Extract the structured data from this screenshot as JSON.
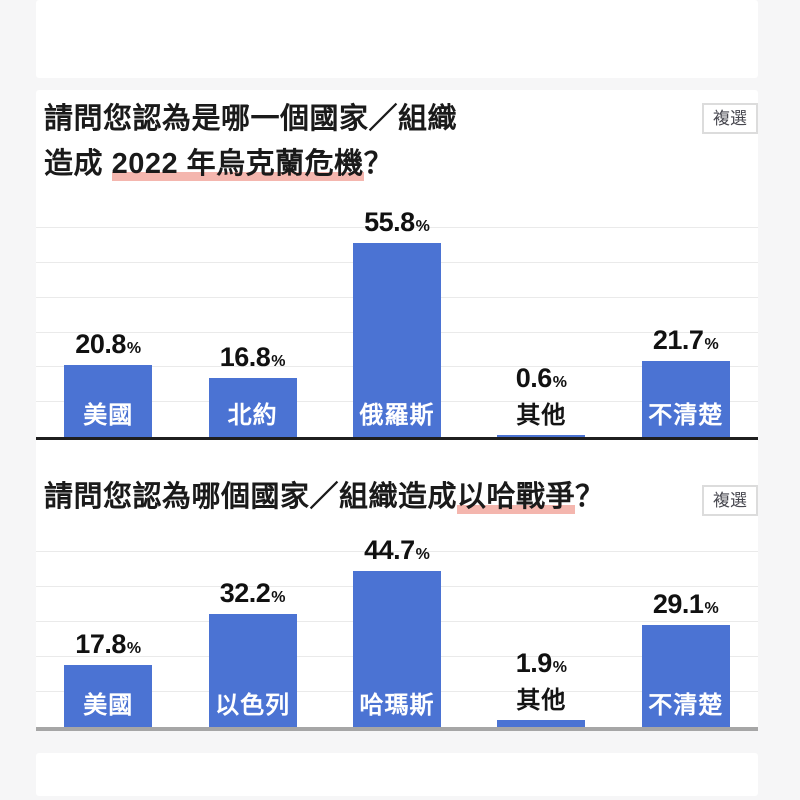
{
  "page": {
    "background": "#f6f6f7",
    "card_background": "#ffffff"
  },
  "colors": {
    "bar": "#4b73d3",
    "title_text": "#1a1a1a",
    "axis_chart1": "#1f1f1f",
    "axis_chart2": "#a6a6a6",
    "gridline": "#eaeaea",
    "highlight_underline": "#f4b6ae",
    "badge_border": "#dcdcdc",
    "badge_text": "#47474f",
    "bar_label_inside": "#ffffff",
    "bar_label_outside": "#141414"
  },
  "chart_data": [
    {
      "type": "bar",
      "title": "請問您認為是哪一個國家／組織造成 2022 年烏克蘭危機？",
      "title_segments": [
        {
          "text": "請問您認為是哪一個國家／組織",
          "highlight": false,
          "break_after": true
        },
        {
          "text": "造成 ",
          "highlight": false
        },
        {
          "text": "2022 年烏克蘭危機",
          "highlight": true
        },
        {
          "text": "？",
          "highlight": false
        }
      ],
      "badge": "複選",
      "categories": [
        "美國",
        "北約",
        "俄羅斯",
        "其他",
        "不清楚"
      ],
      "values": [
        20.8,
        16.8,
        55.8,
        0.6,
        21.7
      ],
      "unit": "%",
      "xlabel": "",
      "ylabel": "",
      "ylim": [
        0,
        60
      ],
      "grid_interval": 10,
      "grid": true,
      "legend": false
    },
    {
      "type": "bar",
      "title": "請問您認為哪個國家／組織造成以哈戰爭？",
      "title_segments": [
        {
          "text": "請問您認為哪個國家／組織造成",
          "highlight": false
        },
        {
          "text": "以哈戰爭",
          "highlight": true
        },
        {
          "text": "？",
          "highlight": false
        }
      ],
      "badge": "複選",
      "categories": [
        "美國",
        "以色列",
        "哈瑪斯",
        "其他",
        "不清楚"
      ],
      "values": [
        17.8,
        32.2,
        44.7,
        1.9,
        29.1
      ],
      "unit": "%",
      "xlabel": "",
      "ylabel": "",
      "ylim": [
        0,
        50
      ],
      "grid_interval": 10,
      "grid": true,
      "legend": false
    }
  ]
}
